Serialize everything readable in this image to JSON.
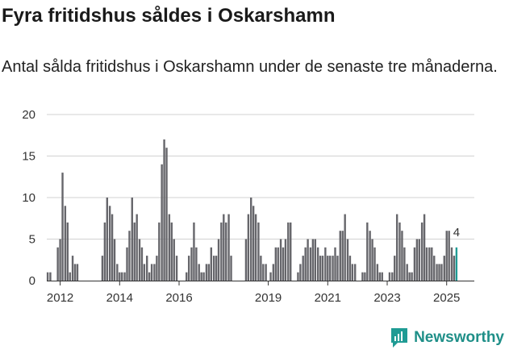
{
  "header": {
    "title": "Fyra fritidshus såldes i Oskarshamn",
    "subtitle": "Antal sålda fritidshus i Oskarshamn under de senaste tre månaderna."
  },
  "brand": {
    "name": "Newsworthy",
    "icon": "newsworthy-logo-icon",
    "color": "#1f8f88"
  },
  "chart_data": {
    "type": "bar",
    "title": "Fyra fritidshus såldes i Oskarshamn",
    "xlabel": "",
    "ylabel": "",
    "ylim": [
      0,
      20
    ],
    "yticks": [
      0,
      5,
      10,
      15,
      20
    ],
    "xlim": [
      2011.55,
      2025.93
    ],
    "xticks": [
      {
        "value": 2012.0,
        "label": "2012"
      },
      {
        "value": 2014.0,
        "label": "2014"
      },
      {
        "value": 2016.0,
        "label": "2016"
      },
      {
        "value": 2019.0,
        "label": "2019"
      },
      {
        "value": 2021.0,
        "label": "2021"
      },
      {
        "value": 2023.0,
        "label": "2023"
      },
      {
        "value": 2025.0,
        "label": "2025"
      }
    ],
    "bar_color": "#66666b",
    "highlight_color": "#1f9b94",
    "last_label": "4",
    "series": [
      {
        "name": "Antal sålda fritidshus",
        "points": [
          [
            2011.58,
            1
          ],
          [
            2011.67,
            1
          ],
          [
            2011.92,
            4
          ],
          [
            2012.0,
            5
          ],
          [
            2012.08,
            13
          ],
          [
            2012.17,
            9
          ],
          [
            2012.25,
            7
          ],
          [
            2012.33,
            1
          ],
          [
            2012.42,
            3
          ],
          [
            2012.5,
            2
          ],
          [
            2012.58,
            2
          ],
          [
            2013.42,
            3
          ],
          [
            2013.5,
            7
          ],
          [
            2013.58,
            10
          ],
          [
            2013.67,
            9
          ],
          [
            2013.75,
            8
          ],
          [
            2013.83,
            5
          ],
          [
            2013.92,
            2
          ],
          [
            2014.0,
            1
          ],
          [
            2014.08,
            1
          ],
          [
            2014.17,
            1
          ],
          [
            2014.25,
            4
          ],
          [
            2014.33,
            6
          ],
          [
            2014.42,
            10
          ],
          [
            2014.5,
            7
          ],
          [
            2014.58,
            8
          ],
          [
            2014.67,
            5
          ],
          [
            2014.75,
            4
          ],
          [
            2014.83,
            2
          ],
          [
            2014.92,
            3
          ],
          [
            2015.0,
            1
          ],
          [
            2015.08,
            2
          ],
          [
            2015.17,
            2
          ],
          [
            2015.25,
            3
          ],
          [
            2015.33,
            7
          ],
          [
            2015.42,
            14
          ],
          [
            2015.5,
            17
          ],
          [
            2015.58,
            16
          ],
          [
            2015.67,
            8
          ],
          [
            2015.75,
            7
          ],
          [
            2015.83,
            5
          ],
          [
            2015.92,
            3
          ],
          [
            2016.25,
            1
          ],
          [
            2016.33,
            3
          ],
          [
            2016.42,
            4
          ],
          [
            2016.5,
            7
          ],
          [
            2016.58,
            4
          ],
          [
            2016.67,
            2
          ],
          [
            2016.75,
            1
          ],
          [
            2016.83,
            1
          ],
          [
            2016.92,
            2
          ],
          [
            2017.0,
            2
          ],
          [
            2017.08,
            4
          ],
          [
            2017.17,
            3
          ],
          [
            2017.25,
            3
          ],
          [
            2017.33,
            5
          ],
          [
            2017.42,
            7
          ],
          [
            2017.5,
            8
          ],
          [
            2017.58,
            7
          ],
          [
            2017.67,
            8
          ],
          [
            2017.75,
            3
          ],
          [
            2018.25,
            5
          ],
          [
            2018.33,
            8
          ],
          [
            2018.42,
            10
          ],
          [
            2018.5,
            9
          ],
          [
            2018.58,
            8
          ],
          [
            2018.67,
            7
          ],
          [
            2018.75,
            3
          ],
          [
            2018.83,
            2
          ],
          [
            2018.92,
            2
          ],
          [
            2019.08,
            1
          ],
          [
            2019.17,
            2
          ],
          [
            2019.25,
            4
          ],
          [
            2019.33,
            4
          ],
          [
            2019.42,
            5
          ],
          [
            2019.5,
            4
          ],
          [
            2019.58,
            5
          ],
          [
            2019.67,
            7
          ],
          [
            2019.75,
            7
          ],
          [
            2020.0,
            1
          ],
          [
            2020.08,
            2
          ],
          [
            2020.17,
            3
          ],
          [
            2020.25,
            4
          ],
          [
            2020.33,
            5
          ],
          [
            2020.42,
            4
          ],
          [
            2020.5,
            5
          ],
          [
            2020.58,
            5
          ],
          [
            2020.67,
            4
          ],
          [
            2020.75,
            3
          ],
          [
            2020.83,
            3
          ],
          [
            2020.92,
            4
          ],
          [
            2021.0,
            3
          ],
          [
            2021.08,
            3
          ],
          [
            2021.17,
            3
          ],
          [
            2021.25,
            4
          ],
          [
            2021.33,
            3
          ],
          [
            2021.42,
            6
          ],
          [
            2021.5,
            6
          ],
          [
            2021.58,
            8
          ],
          [
            2021.67,
            5
          ],
          [
            2021.75,
            3
          ],
          [
            2021.83,
            2
          ],
          [
            2021.92,
            2
          ],
          [
            2022.17,
            1
          ],
          [
            2022.25,
            1
          ],
          [
            2022.33,
            7
          ],
          [
            2022.42,
            6
          ],
          [
            2022.5,
            5
          ],
          [
            2022.58,
            4
          ],
          [
            2022.67,
            2
          ],
          [
            2022.75,
            1
          ],
          [
            2022.83,
            1
          ],
          [
            2023.08,
            1
          ],
          [
            2023.17,
            1
          ],
          [
            2023.25,
            3
          ],
          [
            2023.33,
            8
          ],
          [
            2023.42,
            7
          ],
          [
            2023.5,
            6
          ],
          [
            2023.58,
            4
          ],
          [
            2023.67,
            2
          ],
          [
            2023.75,
            1
          ],
          [
            2023.83,
            1
          ],
          [
            2023.92,
            4
          ],
          [
            2024.0,
            5
          ],
          [
            2024.08,
            5
          ],
          [
            2024.17,
            7
          ],
          [
            2024.25,
            8
          ],
          [
            2024.33,
            4
          ],
          [
            2024.42,
            4
          ],
          [
            2024.5,
            4
          ],
          [
            2024.58,
            3
          ],
          [
            2024.67,
            2
          ],
          [
            2024.75,
            2
          ],
          [
            2024.83,
            2
          ],
          [
            2024.92,
            3
          ],
          [
            2025.0,
            6
          ],
          [
            2025.08,
            6
          ],
          [
            2025.17,
            4
          ],
          [
            2025.25,
            3
          ],
          [
            2025.33,
            4
          ]
        ]
      }
    ]
  }
}
